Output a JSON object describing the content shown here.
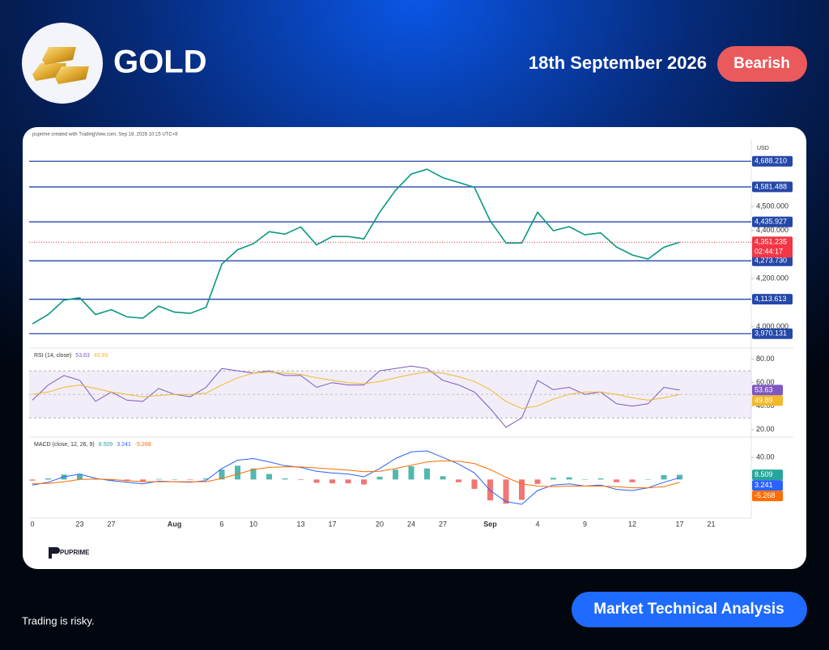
{
  "header": {
    "title": "GOLD",
    "date": "18th September 2026",
    "sentiment": "Bearish"
  },
  "chart_card": {
    "attribution": "puprime created with TradingView.com, Sep 18, 2026 10:15 UTC+8",
    "brand": "PUPRIME"
  },
  "chart_data": [
    {
      "type": "line",
      "y_label": "USD",
      "color": "#089981",
      "categories": [
        "0",
        null,
        null,
        "23",
        null,
        "27",
        null,
        null,
        null,
        "Aug",
        null,
        null,
        "6",
        null,
        "10",
        null,
        null,
        "13",
        null,
        "17",
        null,
        null,
        "20",
        null,
        "24",
        null,
        "27",
        null,
        null,
        "Sep",
        null,
        null,
        "4",
        null,
        null,
        "9",
        null,
        null,
        "12",
        null,
        null,
        "17",
        null,
        "21"
      ],
      "values": [
        4011,
        4050,
        4110,
        4120,
        4050,
        4070,
        4040,
        4035,
        4085,
        4060,
        4055,
        4080,
        4260,
        4320,
        4345,
        4395,
        4385,
        4415,
        4340,
        4375,
        4375,
        4365,
        4476,
        4567,
        4635,
        4655,
        4620,
        4600,
        4580,
        4440,
        4348,
        4348,
        4476,
        4399,
        4416,
        4382,
        4390,
        4331,
        4298,
        4281,
        4330,
        4351,
        null,
        null
      ],
      "ylim": [
        3917,
        4770
      ],
      "yticks": [
        {
          "value": 4000,
          "label": "4,000.000"
        },
        {
          "value": 4200,
          "label": "4,200.000"
        },
        {
          "value": 4400,
          "label": "4,400.000"
        },
        {
          "value": 4500,
          "label": "4,500.000"
        }
      ],
      "levels": [
        {
          "value": 4688.21,
          "label": "4,688.210"
        },
        {
          "value": 4581.488,
          "label": "4,581.488"
        },
        {
          "value": 4435.927,
          "label": "4,435.927"
        },
        {
          "value": 4273.73,
          "label": "4,273.730"
        },
        {
          "value": 4113.613,
          "label": "4,113.613"
        },
        {
          "value": 3970.131,
          "label": "3,970.131"
        }
      ],
      "level_color": "#2447a8",
      "last_price": {
        "value": 4351.235,
        "label": "4,351.235",
        "countdown": "02:44:17",
        "color": "#f23645"
      }
    },
    {
      "type": "line",
      "title": "RSI (14, close)",
      "series": [
        {
          "color": "#7e57c2",
          "values": [
            45,
            58,
            66,
            62,
            44,
            52,
            45,
            44,
            55,
            50,
            48,
            56,
            72,
            70,
            68,
            70,
            66,
            66,
            56,
            60,
            58,
            58,
            70,
            72,
            74,
            72,
            62,
            58,
            52,
            38,
            22,
            30,
            62,
            54,
            56,
            50,
            52,
            42,
            40,
            42,
            56,
            53.63,
            null,
            null
          ]
        },
        {
          "color": "#f2b92c",
          "values": [
            50,
            52,
            56,
            58,
            55,
            52,
            50,
            48,
            49,
            50,
            50,
            51,
            58,
            64,
            68,
            69,
            68,
            67,
            64,
            62,
            60,
            59,
            61,
            64,
            67,
            69,
            68,
            65,
            61,
            54,
            44,
            38,
            40,
            46,
            50,
            52,
            52,
            50,
            47,
            45,
            47,
            49.89,
            null,
            null
          ]
        }
      ],
      "band": [
        30,
        70
      ],
      "midline": 50,
      "ylim": [
        15,
        88
      ],
      "yticks": [
        {
          "value": 80,
          "label": "80.00"
        },
        {
          "value": 60,
          "label": "60.00"
        },
        {
          "value": 40,
          "label": "40.00"
        },
        {
          "value": 20,
          "label": "20.00"
        }
      ]
    },
    {
      "type": "line",
      "title": "MACD (close, 12, 26, 9)",
      "series": [
        {
          "type": "bar",
          "color": "#26a69a",
          "color_down": "#ef5350",
          "values": [
            -2,
            2,
            9,
            10,
            1,
            -2,
            -3,
            -4,
            1,
            0,
            -1,
            2,
            18,
            25,
            20,
            10,
            2,
            -1,
            -6,
            -7,
            -7,
            -9,
            5,
            18,
            24,
            20,
            6,
            -5,
            -17,
            -38,
            -44,
            -37,
            -8,
            3,
            4,
            0,
            2,
            -5,
            -5,
            0,
            8,
            8.509,
            null,
            null
          ]
        },
        {
          "color": "#2962ff",
          "values": [
            -10,
            -5,
            5,
            10,
            2,
            -2,
            -5,
            -8,
            -3,
            -4,
            -5,
            -2,
            20,
            35,
            38,
            32,
            25,
            22,
            15,
            12,
            10,
            5,
            20,
            38,
            50,
            52,
            40,
            28,
            12,
            -20,
            -40,
            -45,
            -20,
            -10,
            -8,
            -12,
            -10,
            -18,
            -20,
            -15,
            -5,
            3.241,
            null,
            null
          ]
        },
        {
          "color": "#ff6d00",
          "values": [
            -8,
            -7,
            -4,
            0,
            1,
            0,
            -2,
            -4,
            -4,
            -4,
            -4,
            -4,
            2,
            10,
            18,
            22,
            23,
            23,
            21,
            19,
            17,
            14,
            15,
            20,
            26,
            32,
            34,
            33,
            29,
            18,
            4,
            -8,
            -12,
            -13,
            -12,
            -12,
            -12,
            -13,
            -15,
            -15,
            -13,
            -5.268,
            null,
            null
          ]
        }
      ],
      "ylim": [
        -70,
        74
      ],
      "yticks": [
        {
          "value": 40,
          "label": "40.00"
        }
      ]
    }
  ],
  "footer": {
    "disclaimer": "Trading is risky.",
    "button": "Market Technical Analysis"
  }
}
